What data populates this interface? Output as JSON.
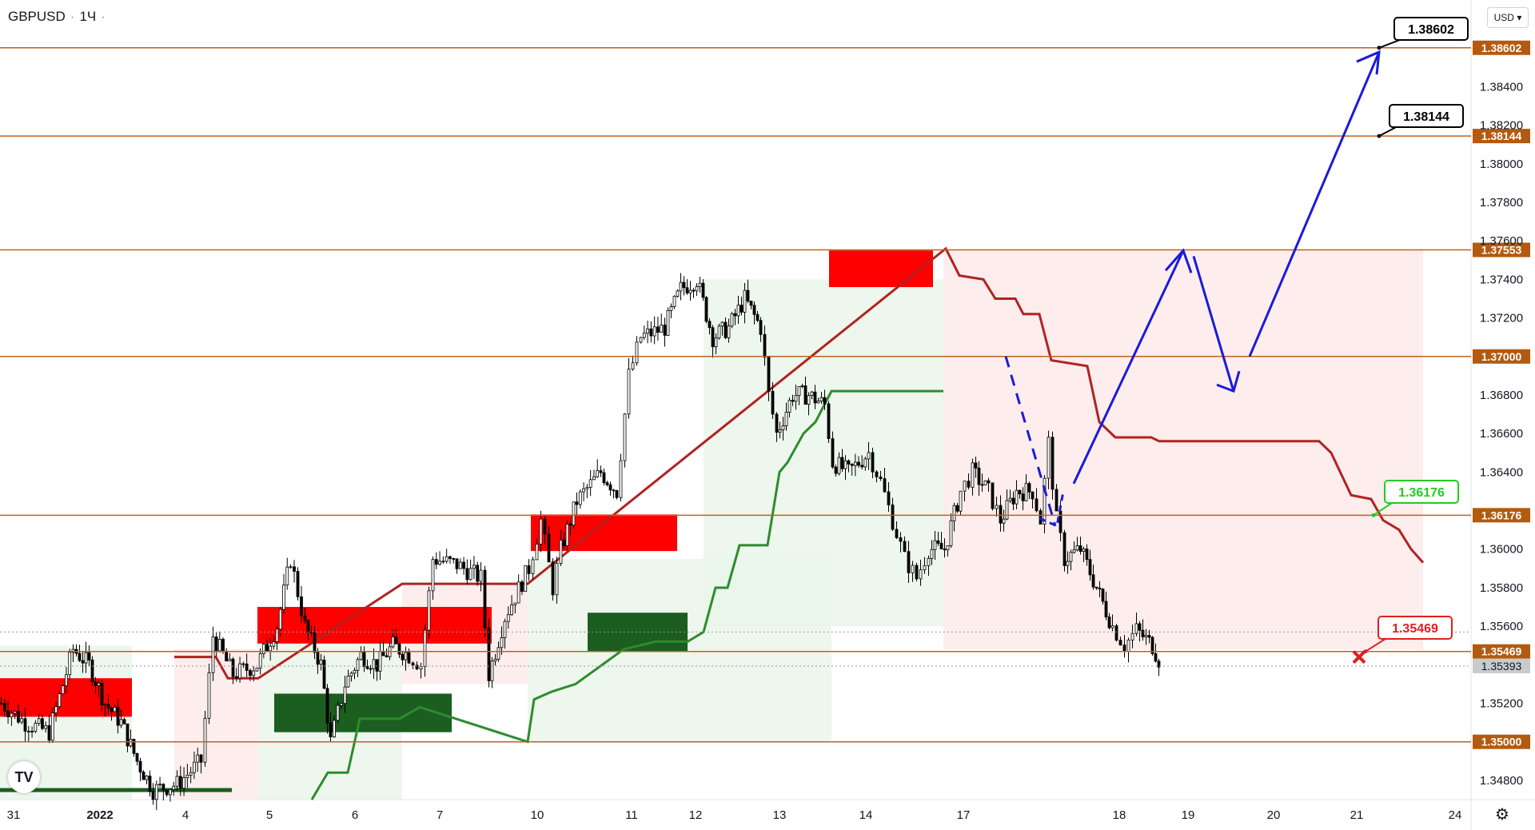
{
  "header": {
    "symbol": "GBPUSD",
    "timeframe": "1Ч",
    "currency": "USD"
  },
  "logo": "TV",
  "settings_icon": "gear-icon",
  "chart_data": {
    "type": "candlestick",
    "symbol": "GBPUSD",
    "timeframe": "1Ч",
    "y_axis": {
      "range": [
        1.347,
        1.3885
      ],
      "ticks": [
        "1.34800",
        "1.35000",
        "1.35200",
        "1.35393",
        "1.35469",
        "1.35600",
        "1.35800",
        "1.36000",
        "1.36176",
        "1.36400",
        "1.36600",
        "1.36800",
        "1.37000",
        "1.37200",
        "1.37400",
        "1.37553",
        "1.37600",
        "1.37800",
        "1.38000",
        "1.38144",
        "1.38200",
        "1.38400",
        "1.38602"
      ]
    },
    "x_axis": {
      "labels": [
        "31",
        "2022",
        "4",
        "5",
        "6",
        "7",
        "10",
        "11",
        "12",
        "13",
        "14",
        "17",
        "18",
        "19",
        "20",
        "21",
        "24"
      ]
    },
    "horizontal_levels": [
      "1.38602",
      "1.38144",
      "1.37553",
      "1.37000",
      "1.36176",
      "1.35469",
      "1.35000"
    ],
    "current_price": "1.35393",
    "callouts": [
      {
        "text": "1.38602",
        "price": 1.38602,
        "color": "#000000"
      },
      {
        "text": "1.38144",
        "price": 1.38144,
        "color": "#000000"
      },
      {
        "text": "1.36176",
        "price": 1.36176,
        "color": "#22cc22"
      },
      {
        "text": "1.35469",
        "price": 1.35469,
        "color": "#e02020"
      }
    ],
    "candles_close_path": [
      [
        0,
        1.352
      ],
      [
        30,
        1.351
      ],
      [
        60,
        1.3505
      ],
      [
        90,
        1.3548
      ],
      [
        110,
        1.354
      ],
      [
        130,
        1.352
      ],
      [
        150,
        1.351
      ],
      [
        170,
        1.349
      ],
      [
        190,
        1.3475
      ],
      [
        220,
        1.3478
      ],
      [
        250,
        1.349
      ],
      [
        265,
        1.3555
      ],
      [
        290,
        1.3535
      ],
      [
        320,
        1.354
      ],
      [
        345,
        1.356
      ],
      [
        362,
        1.3595
      ],
      [
        380,
        1.356
      ],
      [
        400,
        1.354
      ],
      [
        412,
        1.35
      ],
      [
        430,
        1.353
      ],
      [
        450,
        1.3545
      ],
      [
        470,
        1.354
      ],
      [
        490,
        1.355
      ],
      [
        510,
        1.3545
      ],
      [
        525,
        1.354
      ],
      [
        540,
        1.3595
      ],
      [
        570,
        1.3592
      ],
      [
        600,
        1.3585
      ],
      [
        610,
        1.3535
      ],
      [
        630,
        1.3565
      ],
      [
        660,
        1.359
      ],
      [
        675,
        1.3615
      ],
      [
        690,
        1.358
      ],
      [
        700,
        1.36
      ],
      [
        720,
        1.3625
      ],
      [
        750,
        1.364
      ],
      [
        770,
        1.363
      ],
      [
        785,
        1.369
      ],
      [
        800,
        1.371
      ],
      [
        830,
        1.3715
      ],
      [
        850,
        1.3735
      ],
      [
        870,
        1.374
      ],
      [
        890,
        1.371
      ],
      [
        910,
        1.3715
      ],
      [
        930,
        1.373
      ],
      [
        950,
        1.3715
      ],
      [
        960,
        1.368
      ],
      [
        970,
        1.366
      ],
      [
        990,
        1.368
      ],
      [
        1010,
        1.368
      ],
      [
        1030,
        1.3675
      ],
      [
        1040,
        1.3645
      ],
      [
        1060,
        1.364
      ],
      [
        1085,
        1.365
      ],
      [
        1100,
        1.3635
      ],
      [
        1115,
        1.3615
      ],
      [
        1130,
        1.3595
      ],
      [
        1145,
        1.3585
      ],
      [
        1160,
        1.36
      ],
      [
        1180,
        1.36
      ],
      [
        1200,
        1.363
      ],
      [
        1215,
        1.364
      ],
      [
        1235,
        1.363
      ],
      [
        1250,
        1.3615
      ],
      [
        1270,
        1.363
      ],
      [
        1290,
        1.363
      ],
      [
        1300,
        1.3615
      ],
      [
        1310,
        1.3655
      ],
      [
        1320,
        1.3615
      ],
      [
        1330,
        1.3595
      ],
      [
        1350,
        1.36
      ],
      [
        1370,
        1.358
      ],
      [
        1390,
        1.356
      ],
      [
        1405,
        1.355
      ],
      [
        1420,
        1.3558
      ],
      [
        1440,
        1.355
      ],
      [
        1452,
        1.3539
      ]
    ]
  }
}
